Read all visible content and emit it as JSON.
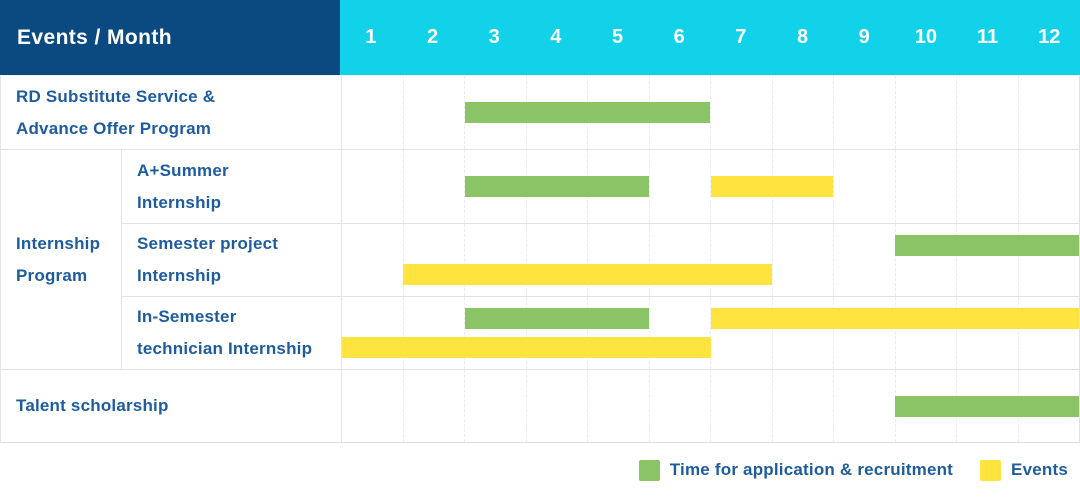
{
  "header": {
    "title": "Events / Month"
  },
  "colors": {
    "header_bg": "#0B4A80",
    "month_header_bg": "#12D2E9",
    "label_text": "#1E5C9D",
    "application_green": "#8BC466",
    "event_yellow": "#FFE33F"
  },
  "legend": [
    {
      "type": "application",
      "label": "Time for application & recruitment"
    },
    {
      "type": "event",
      "label": "Events"
    }
  ],
  "chart_data": {
    "type": "gantt",
    "title": "Events / Month",
    "months": [
      "1",
      "2",
      "3",
      "4",
      "5",
      "6",
      "7",
      "8",
      "9",
      "10",
      "11",
      "12"
    ],
    "bar_types": {
      "application": {
        "color": "#8BC466",
        "legend": "Time for application & recruitment"
      },
      "event": {
        "color": "#FFE33F",
        "legend": "Events"
      }
    },
    "rows": [
      {
        "id": "rd-substitute-advance-offer",
        "label": "RD Substitute Service &\nAdvance Offer Program",
        "group": "",
        "lines": [
          [
            {
              "type": "application",
              "start": 3,
              "end": 6
            }
          ]
        ]
      },
      {
        "id": "a-plus-summer-internship",
        "label": "A+Summer\nInternship",
        "group": "Internship Program",
        "lines": [
          [
            {
              "type": "application",
              "start": 3,
              "end": 5
            },
            {
              "type": "event",
              "start": 7,
              "end": 8
            }
          ]
        ]
      },
      {
        "id": "semester-project-internship",
        "label": "Semester project\nInternship",
        "group": "Internship Program",
        "lines": [
          [
            {
              "type": "application",
              "start": 10,
              "end": 12
            }
          ],
          [
            {
              "type": "event",
              "start": 2,
              "end": 7
            }
          ]
        ]
      },
      {
        "id": "in-semester-technician-internship",
        "label": "In-Semester\ntechnician Internship",
        "group": "Internship Program",
        "lines": [
          [
            {
              "type": "application",
              "start": 3,
              "end": 5
            },
            {
              "type": "event",
              "start": 7,
              "end": 12
            }
          ],
          [
            {
              "type": "event",
              "start": 1,
              "end": 6
            }
          ]
        ]
      },
      {
        "id": "talent-scholarship",
        "label": "Talent scholarship",
        "group": "",
        "lines": [
          [
            {
              "type": "application",
              "start": 10,
              "end": 12
            }
          ]
        ]
      }
    ]
  }
}
